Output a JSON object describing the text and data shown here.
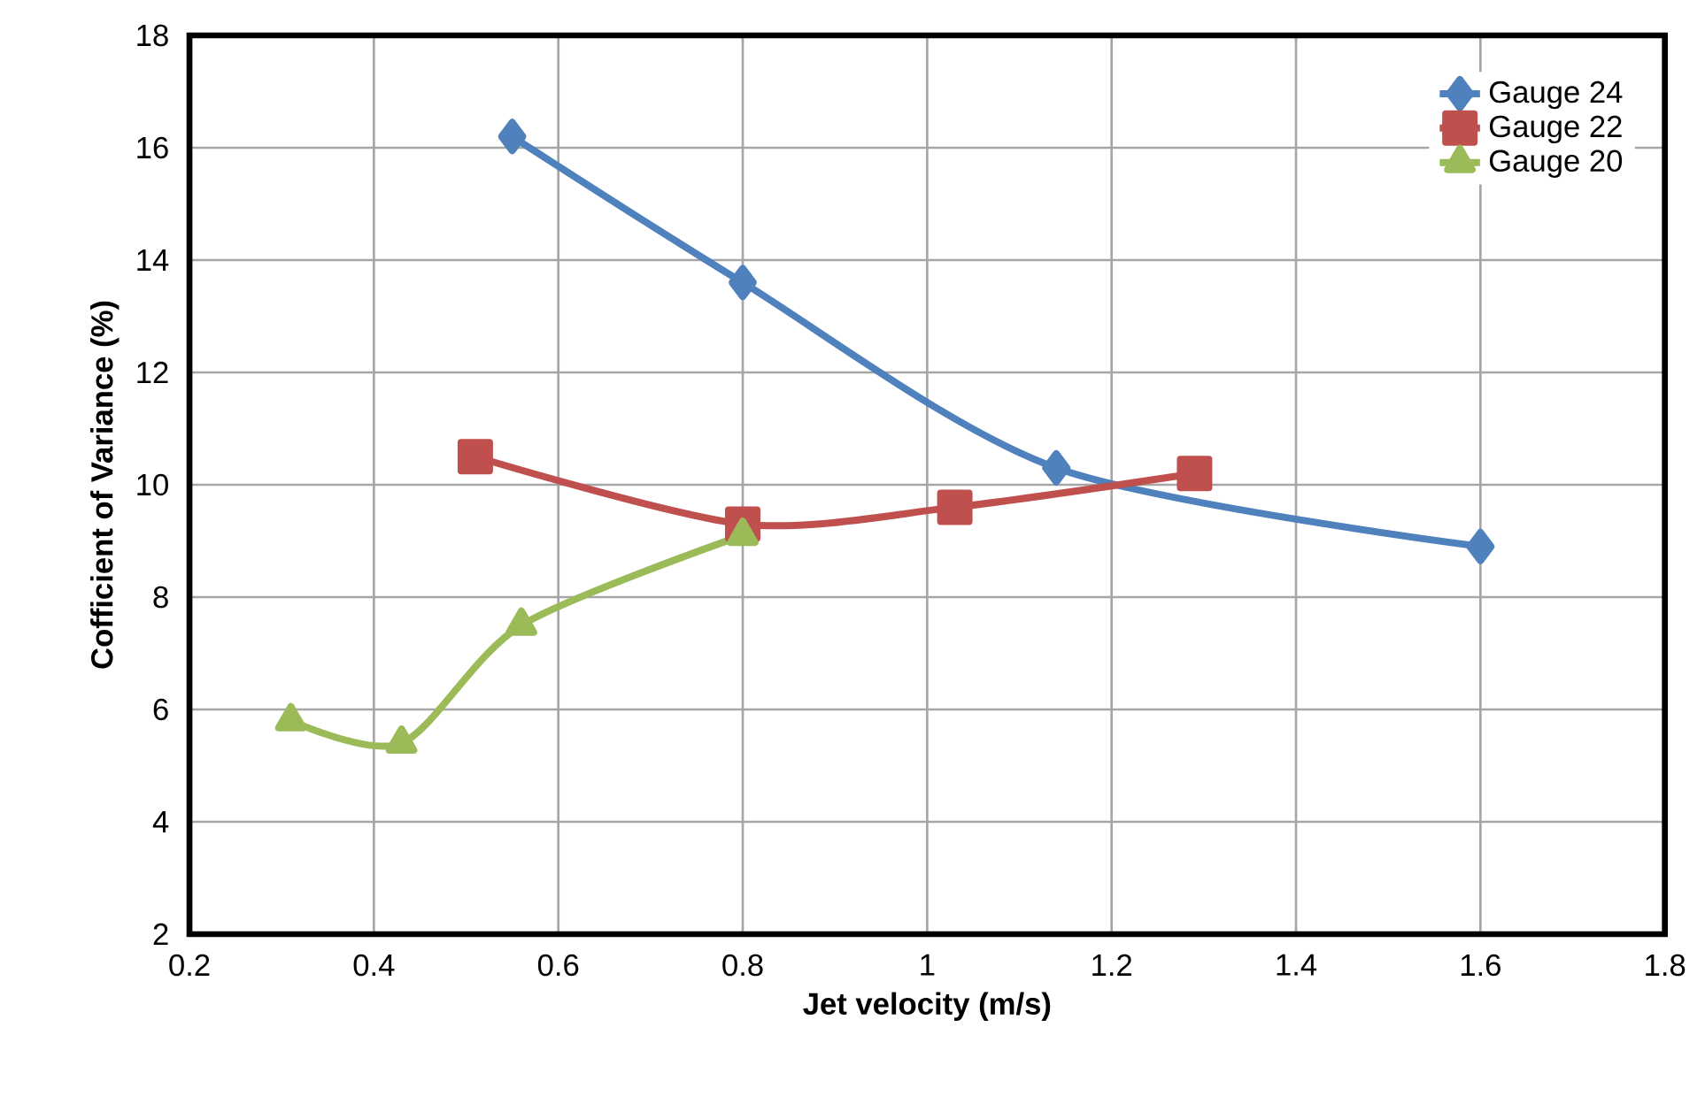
{
  "chart_data": {
    "type": "line",
    "xlabel": "Jet velocity (m/s)",
    "ylabel": "Cofficient of Variance (%)",
    "xlim": [
      0.2,
      1.8
    ],
    "xticks": [
      0.2,
      0.4,
      0.6,
      0.8,
      1,
      1.2,
      1.4,
      1.6,
      1.8
    ],
    "ylim": [
      2,
      18
    ],
    "yticks": [
      2,
      4,
      6,
      8,
      10,
      12,
      14,
      16,
      18
    ],
    "grid": true,
    "legend": "top right",
    "series": [
      {
        "name": "Gauge 24",
        "color": "#4f81bd",
        "marker": "diamond",
        "x": [
          0.55,
          0.8,
          1.14,
          1.6
        ],
        "values": [
          16.2,
          13.6,
          10.3,
          8.9
        ]
      },
      {
        "name": "Gauge 22",
        "color": "#c0504d",
        "marker": "square",
        "x": [
          0.51,
          0.8,
          1.03,
          1.29
        ],
        "values": [
          10.5,
          9.3,
          9.6,
          10.2
        ]
      },
      {
        "name": "Gauge 20",
        "color": "#9bbb59",
        "marker": "triangle",
        "x": [
          0.31,
          0.43,
          0.56,
          0.8
        ],
        "values": [
          5.8,
          5.4,
          7.5,
          9.1
        ]
      }
    ]
  }
}
